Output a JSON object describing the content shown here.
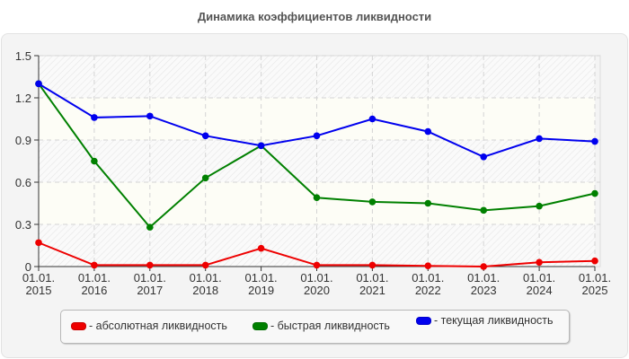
{
  "chart_data": {
    "type": "line",
    "title": "Динамика коэффициентов ликвидности",
    "xlabel": "",
    "ylabel": "",
    "x": [
      "01.01.2015",
      "01.01.2016",
      "01.01.2017",
      "01.01.2018",
      "01.01.2019",
      "01.01.2020",
      "01.01.2021",
      "01.01.2022",
      "01.01.2023",
      "01.01.2024",
      "01.01.2025"
    ],
    "x_tick_labels": [
      [
        "01.01.",
        "2015"
      ],
      [
        "01.01.",
        "2016"
      ],
      [
        "01.01.",
        "2017"
      ],
      [
        "01.01.",
        "2018"
      ],
      [
        "01.01.",
        "2019"
      ],
      [
        "01.01.",
        "2020"
      ],
      [
        "01.01.",
        "2021"
      ],
      [
        "01.01.",
        "2022"
      ],
      [
        "01.01.",
        "2023"
      ],
      [
        "01.01.",
        "2024"
      ],
      [
        "01.01.",
        "2025"
      ]
    ],
    "y_ticks": [
      0,
      0.3,
      0.6,
      0.9,
      1.2,
      1.5
    ],
    "y_tick_labels": [
      "0",
      "0.3",
      "0.6",
      "0.9",
      "1.2",
      "1.5"
    ],
    "ylim": [
      0,
      1.5
    ],
    "grid": true,
    "legend_position": "bottom",
    "series": [
      {
        "name": "абсолютная ликвидность",
        "color": "#ee0000",
        "values": [
          0.17,
          0.01,
          0.01,
          0.01,
          0.13,
          0.01,
          0.01,
          0.005,
          0.0,
          0.03,
          0.04
        ]
      },
      {
        "name": "быстрая ликвидность",
        "color": "#008000",
        "values": [
          1.3,
          0.75,
          0.28,
          0.63,
          0.86,
          0.49,
          0.46,
          0.45,
          0.4,
          0.43,
          0.52
        ]
      },
      {
        "name": "текущая ликвидность",
        "color": "#0000ee",
        "values": [
          1.3,
          1.06,
          1.07,
          0.93,
          0.86,
          0.93,
          1.05,
          0.96,
          0.78,
          0.91,
          0.89
        ]
      }
    ]
  },
  "legend": {
    "items": [
      {
        "label": "- абсолютная ликвидность",
        "color": "#ee0000"
      },
      {
        "label": "- быстрая ликвидность",
        "color": "#008000"
      },
      {
        "label": "- текущая ликвидность",
        "color": "#0000ee"
      }
    ]
  }
}
